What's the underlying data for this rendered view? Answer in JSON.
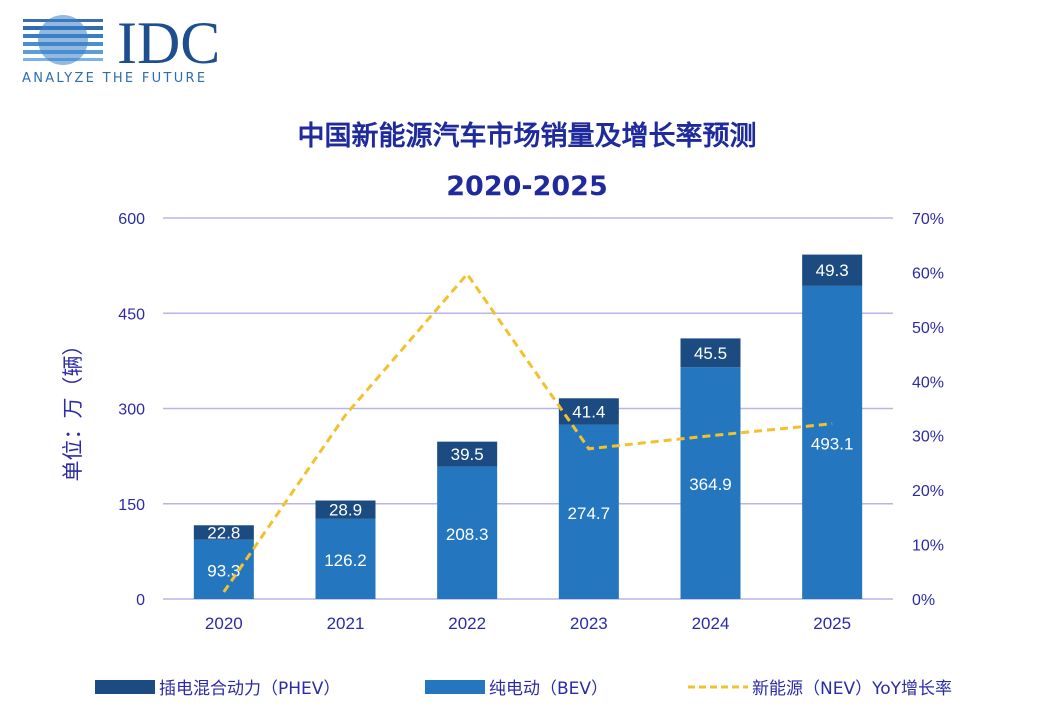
{
  "logo": {
    "brand": "IDC",
    "tagline": "ANALYZE THE FUTURE"
  },
  "colors": {
    "phev": "#1b4b80",
    "bev": "#2477bf",
    "nev": "#f2c12e",
    "axis": "#2b2ba8",
    "grid": "#b7b5ea"
  },
  "chart_data": {
    "type": "bar",
    "title": "中国新能源汽车市场销量及增长率预测",
    "subtitle": "2020-2025",
    "ylabel": "单位：万（辆）",
    "categories": [
      "2020",
      "2021",
      "2022",
      "2023",
      "2024",
      "2025"
    ],
    "ylim": [
      0,
      600
    ],
    "yticks": [
      "0",
      "150",
      "300",
      "450",
      "600"
    ],
    "y2lim": [
      0,
      70
    ],
    "y2ticks": [
      "0%",
      "10%",
      "20%",
      "30%",
      "40%",
      "50%",
      "60%",
      "70%"
    ],
    "series": [
      {
        "name": "纯电动（BEV）",
        "type": "stacked-bar",
        "values": [
          93.3,
          126.2,
          208.3,
          274.7,
          364.9,
          493.1
        ]
      },
      {
        "name": "插电混合动力（PHEV）",
        "type": "stacked-bar",
        "values": [
          22.8,
          28.9,
          39.5,
          41.4,
          45.5,
          49.3
        ]
      },
      {
        "name": "新能源（NEV）YoY增长率",
        "type": "line-dashed",
        "axis": "right",
        "values": [
          1.3,
          33.8,
          59.7,
          27.6,
          30,
          32.2
        ]
      }
    ],
    "legend": "bottom"
  }
}
